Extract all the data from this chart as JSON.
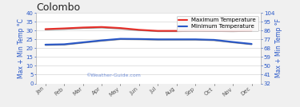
{
  "title": "Colombo",
  "months": [
    "Jan",
    "Feb",
    "Mar",
    "Apr",
    "May",
    "Jun",
    "Jul",
    "Aug",
    "Sep",
    "Oct",
    "Nov",
    "Dec"
  ],
  "max_temp_c": [
    30.8,
    31.2,
    31.7,
    32.0,
    31.4,
    30.4,
    29.8,
    29.8,
    30.0,
    29.9,
    29.8,
    30.0
  ],
  "min_temp_c": [
    22.0,
    22.2,
    23.3,
    24.4,
    25.3,
    25.2,
    25.0,
    25.0,
    25.0,
    24.7,
    23.5,
    22.4
  ],
  "max_shadow": [
    30.5,
    30.8,
    31.3,
    31.6,
    31.0,
    30.1,
    29.5,
    29.5,
    29.7,
    29.6,
    29.5,
    29.7
  ],
  "min_shadow": [
    21.7,
    21.9,
    23.0,
    24.1,
    25.0,
    24.9,
    24.7,
    24.7,
    24.7,
    24.4,
    23.2,
    22.1
  ],
  "ylim_left": [
    0,
    40
  ],
  "ylim_right": [
    32,
    104
  ],
  "yticks_left": [
    0,
    5,
    10,
    15,
    20,
    25,
    30,
    35,
    40
  ],
  "yticks_right": [
    32,
    41,
    50,
    59,
    68,
    77,
    86,
    95,
    104
  ],
  "max_line_color": "#e8302a",
  "min_line_color": "#2857c8",
  "shadow_color": "#888888",
  "bg_color": "#f0f0f0",
  "plot_bg_color": "#ffffff",
  "grid_color": "#cccccc",
  "axis_label_color": "#2857c8",
  "ylabel_left": "Max + Min Temp °C",
  "ylabel_right": "Max + Min Temp °F",
  "watermark": "©Weather-Guide.com",
  "legend_max": "Maximum Temperature",
  "legend_min": "Minimum Temperature",
  "title_fontsize": 9,
  "label_fontsize": 5.5,
  "tick_fontsize": 5,
  "legend_fontsize": 5
}
